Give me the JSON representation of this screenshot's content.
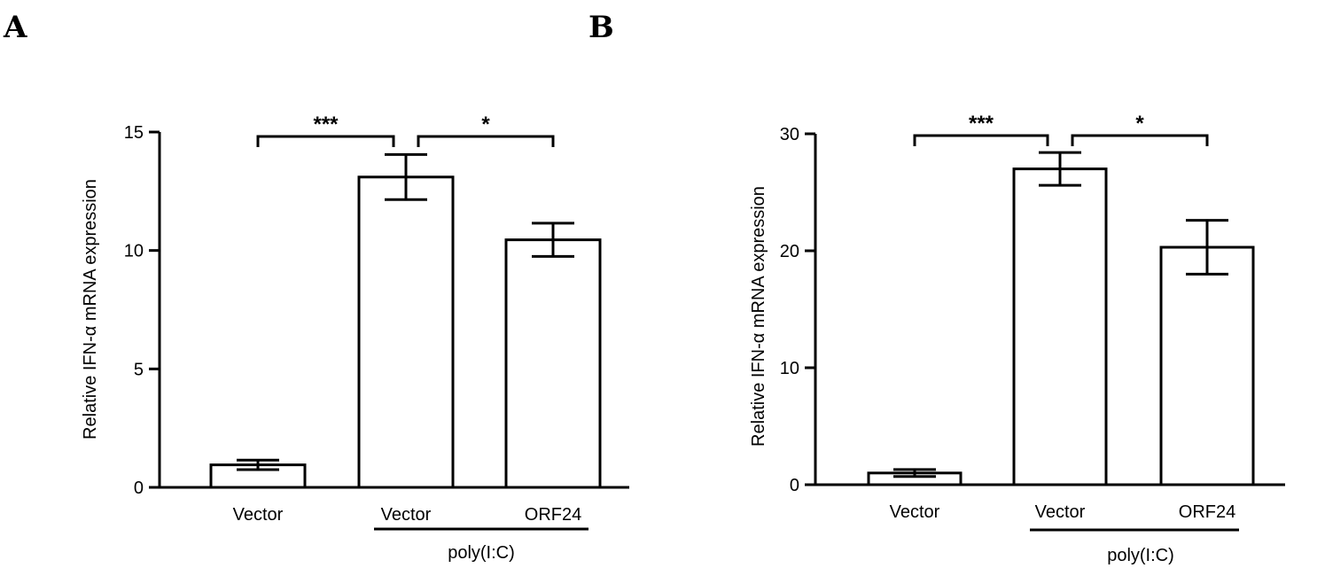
{
  "chart_data": [
    {
      "type": "bar",
      "panel_label": "A",
      "categories": [
        "Vector",
        "Vector",
        "ORF24"
      ],
      "values": [
        0.95,
        13.1,
        10.45
      ],
      "errors": [
        0.2,
        0.95,
        0.7
      ],
      "ylim": [
        0,
        15
      ],
      "yticks": [
        0,
        5,
        10,
        15
      ],
      "ylabel": "Relative IFN-α mRNA expression",
      "xlabel": "",
      "group_label": "poly(I:C)",
      "group_categories": [
        1,
        2
      ],
      "significance": [
        {
          "from": 0,
          "to": 1,
          "label": "***"
        },
        {
          "from": 1,
          "to": 2,
          "label": "*"
        }
      ]
    },
    {
      "type": "bar",
      "panel_label": "B",
      "categories": [
        "Vector",
        "Vector",
        "ORF24"
      ],
      "values": [
        1.0,
        27.0,
        20.3
      ],
      "errors": [
        0.3,
        1.4,
        2.3
      ],
      "ylim": [
        0,
        30
      ],
      "yticks": [
        0,
        10,
        20,
        30
      ],
      "ylabel": "Relative IFN-α mRNA expression",
      "xlabel": "",
      "group_label": "poly(I:C)",
      "group_categories": [
        1,
        2
      ],
      "significance": [
        {
          "from": 0,
          "to": 1,
          "label": "***"
        },
        {
          "from": 1,
          "to": 2,
          "label": "*"
        }
      ]
    }
  ]
}
